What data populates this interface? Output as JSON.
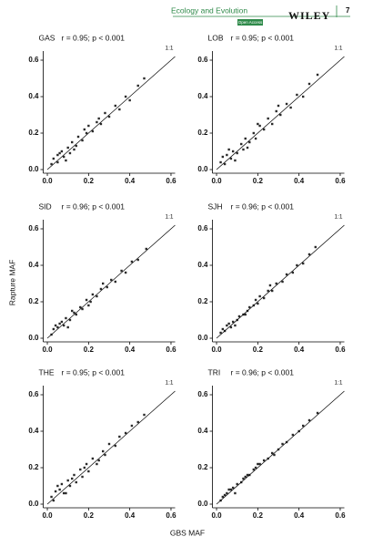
{
  "header": {
    "journal": "Ecology and Evolution",
    "access": "Open Access",
    "publisher": "WILEY",
    "page": "7"
  },
  "figure": {
    "xlabel": "GBS MAF",
    "ylabel": "Rapture MAF"
  },
  "chart_data": [
    {
      "type": "scatter",
      "label": "GAS",
      "title": "r = 0.95; p < 0.001",
      "annotation": "1:1",
      "color": "#2a2a2a",
      "x": [
        0.02,
        0.03,
        0.05,
        0.06,
        0.08,
        0.1,
        0.11,
        0.12,
        0.14,
        0.15,
        0.17,
        0.19,
        0.2,
        0.22,
        0.24,
        0.26,
        0.28,
        0.3,
        0.33,
        0.35,
        0.38,
        0.4,
        0.44,
        0.47,
        0.05,
        0.09,
        0.13,
        0.18,
        0.07,
        0.25
      ],
      "values": [
        0.03,
        0.06,
        0.04,
        0.09,
        0.07,
        0.12,
        0.09,
        0.15,
        0.13,
        0.18,
        0.16,
        0.2,
        0.24,
        0.21,
        0.26,
        0.25,
        0.31,
        0.29,
        0.35,
        0.33,
        0.4,
        0.38,
        0.46,
        0.5,
        0.08,
        0.05,
        0.11,
        0.22,
        0.1,
        0.28
      ],
      "xlim": [
        -0.02,
        0.62
      ],
      "ylim": [
        -0.02,
        0.65
      ],
      "xticks": [
        {
          "value": 0,
          "label": "0.0"
        },
        0.2,
        0.4,
        0.6
      ],
      "yticks": [
        {
          "value": 0,
          "label": "0.0"
        },
        0.2,
        0.4,
        0.6
      ]
    },
    {
      "type": "scatter",
      "label": "LOB",
      "title": "r = 0.95; p < 0.001",
      "annotation": "1:1",
      "color": "#2a2a2a",
      "x": [
        0.02,
        0.04,
        0.05,
        0.07,
        0.08,
        0.1,
        0.12,
        0.13,
        0.14,
        0.16,
        0.18,
        0.19,
        0.21,
        0.23,
        0.25,
        0.27,
        0.29,
        0.31,
        0.34,
        0.36,
        0.39,
        0.42,
        0.45,
        0.49,
        0.06,
        0.09,
        0.15,
        0.2,
        0.03,
        0.3
      ],
      "values": [
        0.04,
        0.03,
        0.08,
        0.06,
        0.1,
        0.09,
        0.14,
        0.11,
        0.17,
        0.15,
        0.2,
        0.17,
        0.24,
        0.22,
        0.28,
        0.25,
        0.32,
        0.3,
        0.36,
        0.34,
        0.41,
        0.4,
        0.47,
        0.52,
        0.11,
        0.05,
        0.12,
        0.25,
        0.07,
        0.35
      ],
      "xlim": [
        -0.02,
        0.62
      ],
      "ylim": [
        -0.02,
        0.65
      ],
      "xticks": [
        {
          "value": 0,
          "label": "0.0"
        },
        0.2,
        0.4,
        0.6
      ],
      "yticks": [
        {
          "value": 0,
          "label": "0.0"
        },
        0.2,
        0.4,
        0.6
      ]
    },
    {
      "type": "scatter",
      "label": "SID",
      "title": "r = 0.96; p < 0.001",
      "annotation": "1:1",
      "color": "#2a2a2a",
      "x": [
        0.02,
        0.03,
        0.05,
        0.06,
        0.08,
        0.09,
        0.11,
        0.13,
        0.14,
        0.16,
        0.17,
        0.19,
        0.21,
        0.22,
        0.24,
        0.26,
        0.29,
        0.31,
        0.33,
        0.36,
        0.38,
        0.41,
        0.44,
        0.48,
        0.04,
        0.1,
        0.12,
        0.2,
        0.07,
        0.27
      ],
      "values": [
        0.02,
        0.05,
        0.06,
        0.08,
        0.07,
        0.11,
        0.1,
        0.14,
        0.13,
        0.17,
        0.16,
        0.21,
        0.2,
        0.24,
        0.23,
        0.27,
        0.28,
        0.32,
        0.31,
        0.37,
        0.36,
        0.42,
        0.43,
        0.49,
        0.07,
        0.06,
        0.15,
        0.18,
        0.09,
        0.3
      ],
      "xlim": [
        -0.02,
        0.62
      ],
      "ylim": [
        -0.02,
        0.65
      ],
      "xticks": [
        {
          "value": 0,
          "label": "0.0"
        },
        0.2,
        0.4,
        0.6
      ],
      "yticks": [
        {
          "value": 0,
          "label": "0.0"
        },
        0.2,
        0.4,
        0.6
      ]
    },
    {
      "type": "scatter",
      "label": "SJH",
      "title": "r = 0.96; p < 0.001",
      "annotation": "1:1",
      "color": "#2a2a2a",
      "x": [
        0.02,
        0.04,
        0.05,
        0.07,
        0.08,
        0.1,
        0.11,
        0.13,
        0.15,
        0.16,
        0.18,
        0.2,
        0.21,
        0.23,
        0.25,
        0.27,
        0.29,
        0.32,
        0.34,
        0.37,
        0.39,
        0.42,
        0.45,
        0.48,
        0.06,
        0.09,
        0.14,
        0.19,
        0.03,
        0.26
      ],
      "values": [
        0.03,
        0.04,
        0.07,
        0.06,
        0.09,
        0.1,
        0.12,
        0.13,
        0.15,
        0.17,
        0.18,
        0.19,
        0.23,
        0.22,
        0.26,
        0.26,
        0.3,
        0.31,
        0.35,
        0.36,
        0.4,
        0.41,
        0.46,
        0.5,
        0.08,
        0.07,
        0.13,
        0.21,
        0.05,
        0.29
      ],
      "xlim": [
        -0.02,
        0.62
      ],
      "ylim": [
        -0.02,
        0.65
      ],
      "xticks": [
        {
          "value": 0,
          "label": "0.0"
        },
        0.2,
        0.4,
        0.6
      ],
      "yticks": [
        {
          "value": 0,
          "label": "0.0"
        },
        0.2,
        0.4,
        0.6
      ]
    },
    {
      "type": "scatter",
      "label": "THE",
      "title": "r = 0.95; p < 0.001",
      "annotation": "1:1",
      "color": "#2a2a2a",
      "x": [
        0.02,
        0.03,
        0.04,
        0.06,
        0.08,
        0.1,
        0.11,
        0.12,
        0.14,
        0.16,
        0.17,
        0.19,
        0.2,
        0.22,
        0.24,
        0.27,
        0.28,
        0.3,
        0.33,
        0.35,
        0.38,
        0.41,
        0.44,
        0.47,
        0.05,
        0.09,
        0.13,
        0.18,
        0.07,
        0.25
      ],
      "values": [
        0.04,
        0.02,
        0.07,
        0.08,
        0.06,
        0.13,
        0.1,
        0.14,
        0.12,
        0.19,
        0.15,
        0.22,
        0.18,
        0.25,
        0.22,
        0.29,
        0.27,
        0.33,
        0.32,
        0.37,
        0.39,
        0.43,
        0.45,
        0.49,
        0.1,
        0.06,
        0.16,
        0.2,
        0.11,
        0.24
      ],
      "xlim": [
        -0.02,
        0.62
      ],
      "ylim": [
        -0.02,
        0.65
      ],
      "xticks": [
        {
          "value": 0,
          "label": "0.0"
        },
        0.2,
        0.4,
        0.6
      ],
      "yticks": [
        {
          "value": 0,
          "label": "0.0"
        },
        0.2,
        0.4,
        0.6
      ]
    },
    {
      "type": "scatter",
      "label": "TRI",
      "title": "r = 0.96; p < 0.001",
      "annotation": "1:1",
      "color": "#2a2a2a",
      "x": [
        0.02,
        0.04,
        0.05,
        0.07,
        0.08,
        0.1,
        0.12,
        0.13,
        0.15,
        0.16,
        0.18,
        0.19,
        0.21,
        0.23,
        0.25,
        0.27,
        0.3,
        0.32,
        0.34,
        0.37,
        0.4,
        0.42,
        0.45,
        0.49,
        0.06,
        0.09,
        0.14,
        0.2,
        0.03,
        0.28
      ],
      "values": [
        0.02,
        0.05,
        0.06,
        0.08,
        0.09,
        0.11,
        0.12,
        0.14,
        0.16,
        0.16,
        0.19,
        0.2,
        0.22,
        0.24,
        0.25,
        0.28,
        0.3,
        0.33,
        0.34,
        0.38,
        0.4,
        0.43,
        0.46,
        0.5,
        0.08,
        0.06,
        0.15,
        0.22,
        0.04,
        0.27
      ],
      "xlim": [
        -0.02,
        0.62
      ],
      "ylim": [
        -0.02,
        0.65
      ],
      "xticks": [
        {
          "value": 0,
          "label": "0.0"
        },
        0.2,
        0.4,
        0.6
      ],
      "yticks": [
        {
          "value": 0,
          "label": "0.0"
        },
        0.2,
        0.4,
        0.6
      ]
    }
  ]
}
